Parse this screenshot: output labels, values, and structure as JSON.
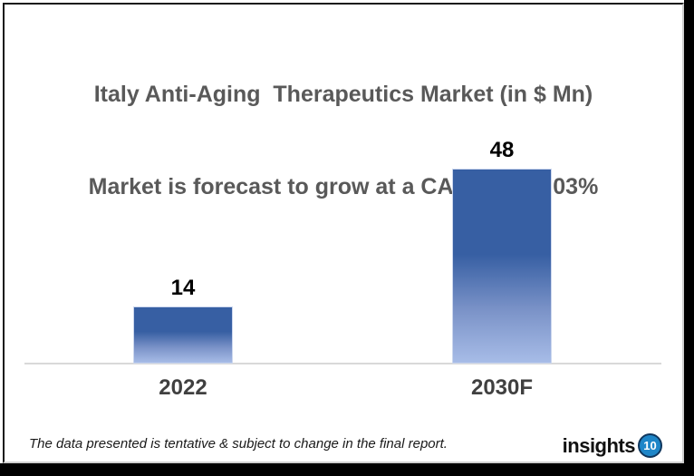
{
  "header": {
    "title_line1": "Italy Anti-Aging  Therapeutics Market (in $ Mn)",
    "title_line2": "Market is forecast to grow at a CAGR of 16.03%"
  },
  "chart_data": {
    "type": "bar",
    "title": "Italy Anti-Aging Therapeutics Market (in $ Mn)",
    "subtitle": "Market is forecast to grow at a CAGR of 16.03%",
    "unit": "$ Mn",
    "cagr": "16.03%",
    "categories": [
      "2022",
      "2030F"
    ],
    "values": [
      14,
      48
    ],
    "ylim": [
      0,
      50
    ],
    "grid": false,
    "legend": false,
    "title_color": "#595959",
    "bar_gradient_top": "#375fa3",
    "bar_gradient_bottom": "#a7bce7",
    "axis_line_color": "#d9d9d9",
    "value_label_color": "#000000",
    "category_label_color": "#404040"
  },
  "footer": {
    "disclaimer": "The data presented is tentative & subject to change in the final report.",
    "logo_text": "insights",
    "logo_badge": "10",
    "logo_badge_color": "#1e86c8"
  }
}
